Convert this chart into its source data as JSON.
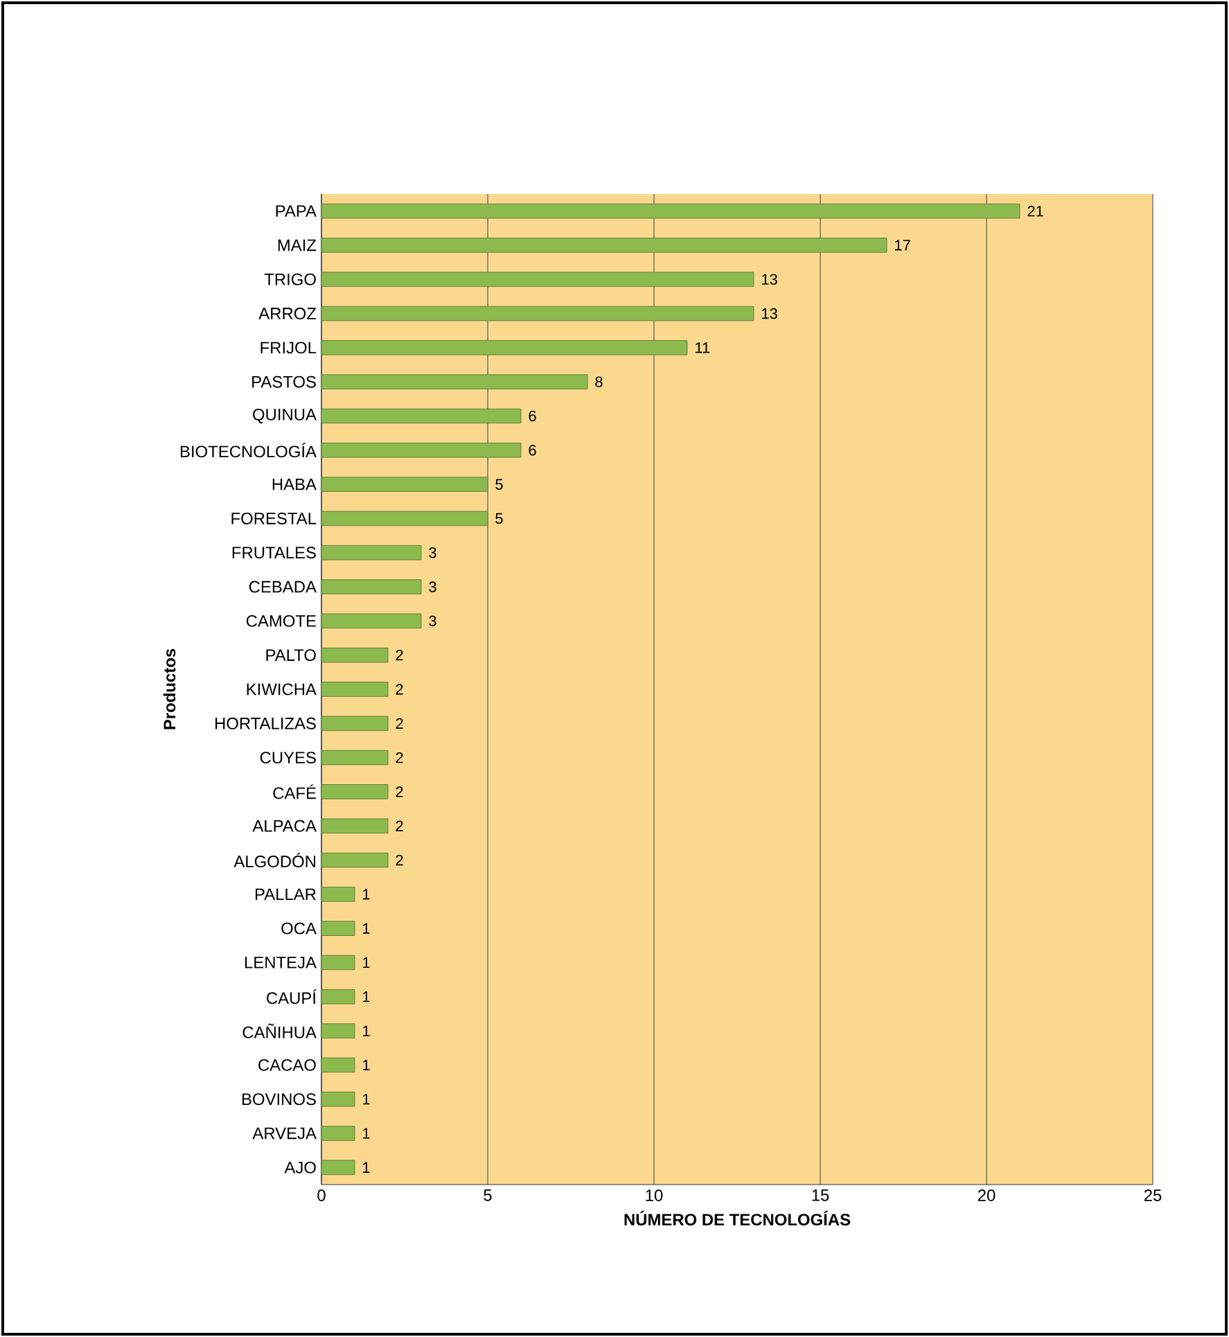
{
  "chart_data": {
    "type": "bar",
    "orientation": "horizontal",
    "categories": [
      "PAPA",
      "MAIZ",
      "TRIGO",
      "ARROZ",
      "FRIJOL",
      "PASTOS",
      "QUINUA",
      "BIOTECNOLOGÍA",
      "HABA",
      "FORESTAL",
      "FRUTALES",
      "CEBADA",
      "CAMOTE",
      "PALTO",
      "KIWICHA",
      "HORTALIZAS",
      "CUYES",
      "CAFÉ",
      "ALPACA",
      "ALGODÓN",
      "PALLAR",
      "OCA",
      "LENTEJA",
      "CAUPÍ",
      "CAÑIHUA",
      "CACAO",
      "BOVINOS",
      "ARVEJA",
      "AJO"
    ],
    "values": [
      21,
      17,
      13,
      13,
      11,
      8,
      6,
      6,
      5,
      5,
      3,
      3,
      3,
      2,
      2,
      2,
      2,
      2,
      2,
      2,
      1,
      1,
      1,
      1,
      1,
      1,
      1,
      1,
      1
    ],
    "color": "#8cba4e",
    "xlim": [
      0,
      25
    ],
    "xticks": [
      0,
      5,
      10,
      15,
      20,
      25
    ],
    "xlabel": "NÚMERO DE TECNOLOGÍAS",
    "ylabel": "Productos",
    "grid": "x",
    "data_labels": true
  }
}
